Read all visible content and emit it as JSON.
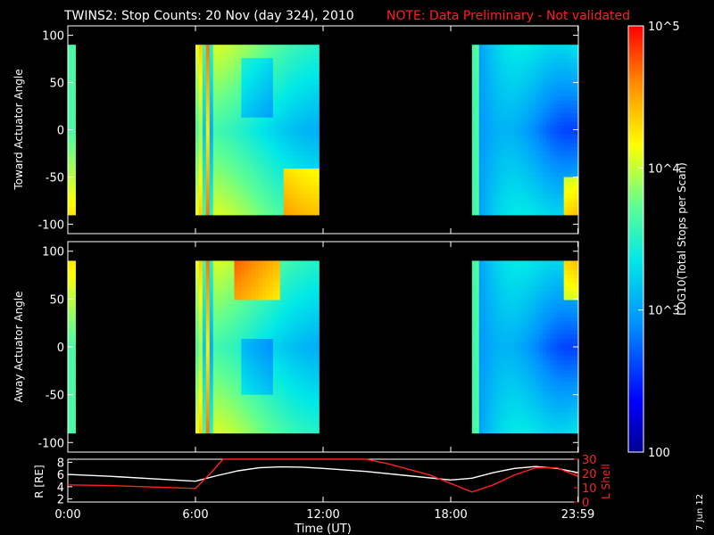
{
  "header": {
    "title": "TWINS2: Stop Counts: 20 Nov (day 324), 2010",
    "note": "NOTE: Data Preliminary - Not validated"
  },
  "footer": {
    "date_stamp": "7 Jun 12"
  },
  "colorbar": {
    "label": "LOG10(Total Stops per Scan)",
    "ticks": [
      "10^5",
      "10^4",
      "10^3",
      "100"
    ]
  },
  "chart_data": [
    {
      "type": "heatmap",
      "panel": "toward",
      "ylabel": "Toward Actuator Angle",
      "y_ticks": [
        "100",
        "50",
        "0",
        "-50",
        "-100"
      ],
      "ylim": [
        -110,
        110
      ],
      "xlim_hours": [
        0,
        24
      ],
      "colorscale": "log",
      "zlim": [
        100,
        100000
      ],
      "data_segments_hours": [
        [
          0,
          0.35
        ],
        [
          6.0,
          11.8
        ],
        [
          19.0,
          23.98
        ]
      ],
      "angle_range": [
        -90,
        90
      ]
    },
    {
      "type": "heatmap",
      "panel": "away",
      "ylabel": "Away Actuator Angle",
      "y_ticks": [
        "100",
        "50",
        "0",
        "-50",
        "-100"
      ],
      "ylim": [
        -110,
        110
      ],
      "xlim_hours": [
        0,
        24
      ],
      "colorscale": "log",
      "zlim": [
        100,
        100000
      ],
      "data_segments_hours": [
        [
          0,
          0.35
        ],
        [
          6.0,
          11.8
        ],
        [
          19.0,
          23.98
        ]
      ],
      "angle_range": [
        -90,
        90
      ]
    },
    {
      "type": "line",
      "panel": "orbit",
      "xlabel": "Time (UT)",
      "x_tick_labels": [
        "0:00",
        "6:00",
        "12:00",
        "18:00",
        "23:59"
      ],
      "x_tick_hours": [
        0,
        6,
        12,
        18,
        23.98
      ],
      "left_axis": {
        "label": "R [RE]",
        "ticks": [
          "8",
          "6",
          "4",
          "2"
        ],
        "ylim": [
          1.5,
          8.5
        ]
      },
      "right_axis": {
        "label": "L Shell",
        "ticks": [
          "30",
          "20",
          "10",
          "0"
        ],
        "ylim": [
          0,
          30
        ],
        "color": "#ff2020"
      },
      "series": [
        {
          "name": "R",
          "axis": "left",
          "color": "#ffffff",
          "x": [
            0,
            2,
            4,
            6,
            7,
            8,
            9,
            10,
            11,
            12,
            14,
            16,
            18,
            19,
            20,
            21,
            22,
            23,
            23.98
          ],
          "y": [
            6.0,
            5.7,
            5.3,
            4.9,
            5.8,
            6.6,
            7.1,
            7.25,
            7.2,
            7.0,
            6.5,
            5.8,
            5.1,
            5.4,
            6.3,
            7.0,
            7.3,
            7.0,
            6.3
          ]
        },
        {
          "name": "L Shell",
          "axis": "right",
          "color": "#ff2020",
          "x": [
            0,
            2,
            4,
            6,
            6.7,
            7.3,
            14,
            15,
            16,
            17,
            18,
            19,
            20,
            21,
            22,
            23,
            23.98
          ],
          "y": [
            12,
            11.5,
            10.5,
            9.5,
            20,
            30,
            30,
            27,
            23,
            19,
            13,
            7,
            12,
            19,
            24,
            24,
            18
          ]
        }
      ]
    }
  ]
}
